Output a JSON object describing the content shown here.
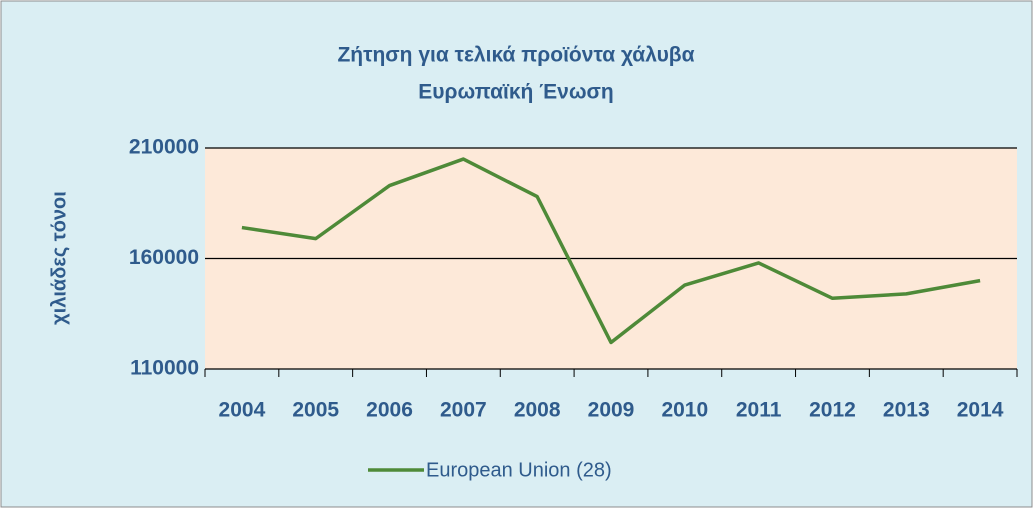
{
  "chart_data": {
    "type": "line",
    "title": "Ζήτηση για τελικά προϊόντα χάλυβα",
    "subtitle": "Ευρωπαϊκή Ένωση",
    "y_label": "χιλιάδες τόνοι",
    "categories": [
      "2004",
      "2005",
      "2006",
      "2007",
      "2008",
      "2009",
      "2010",
      "2011",
      "2012",
      "2013",
      "2014"
    ],
    "series": [
      {
        "name": "European Union (28)",
        "color": "#4e8a38",
        "values": [
          174000,
          169000,
          193000,
          205000,
          188000,
          122000,
          148000,
          158000,
          142000,
          144000,
          150000
        ]
      }
    ],
    "ylim": [
      110000,
      210000
    ],
    "yticks": [
      110000,
      160000,
      210000
    ],
    "grid": true,
    "legend": "bottom"
  }
}
